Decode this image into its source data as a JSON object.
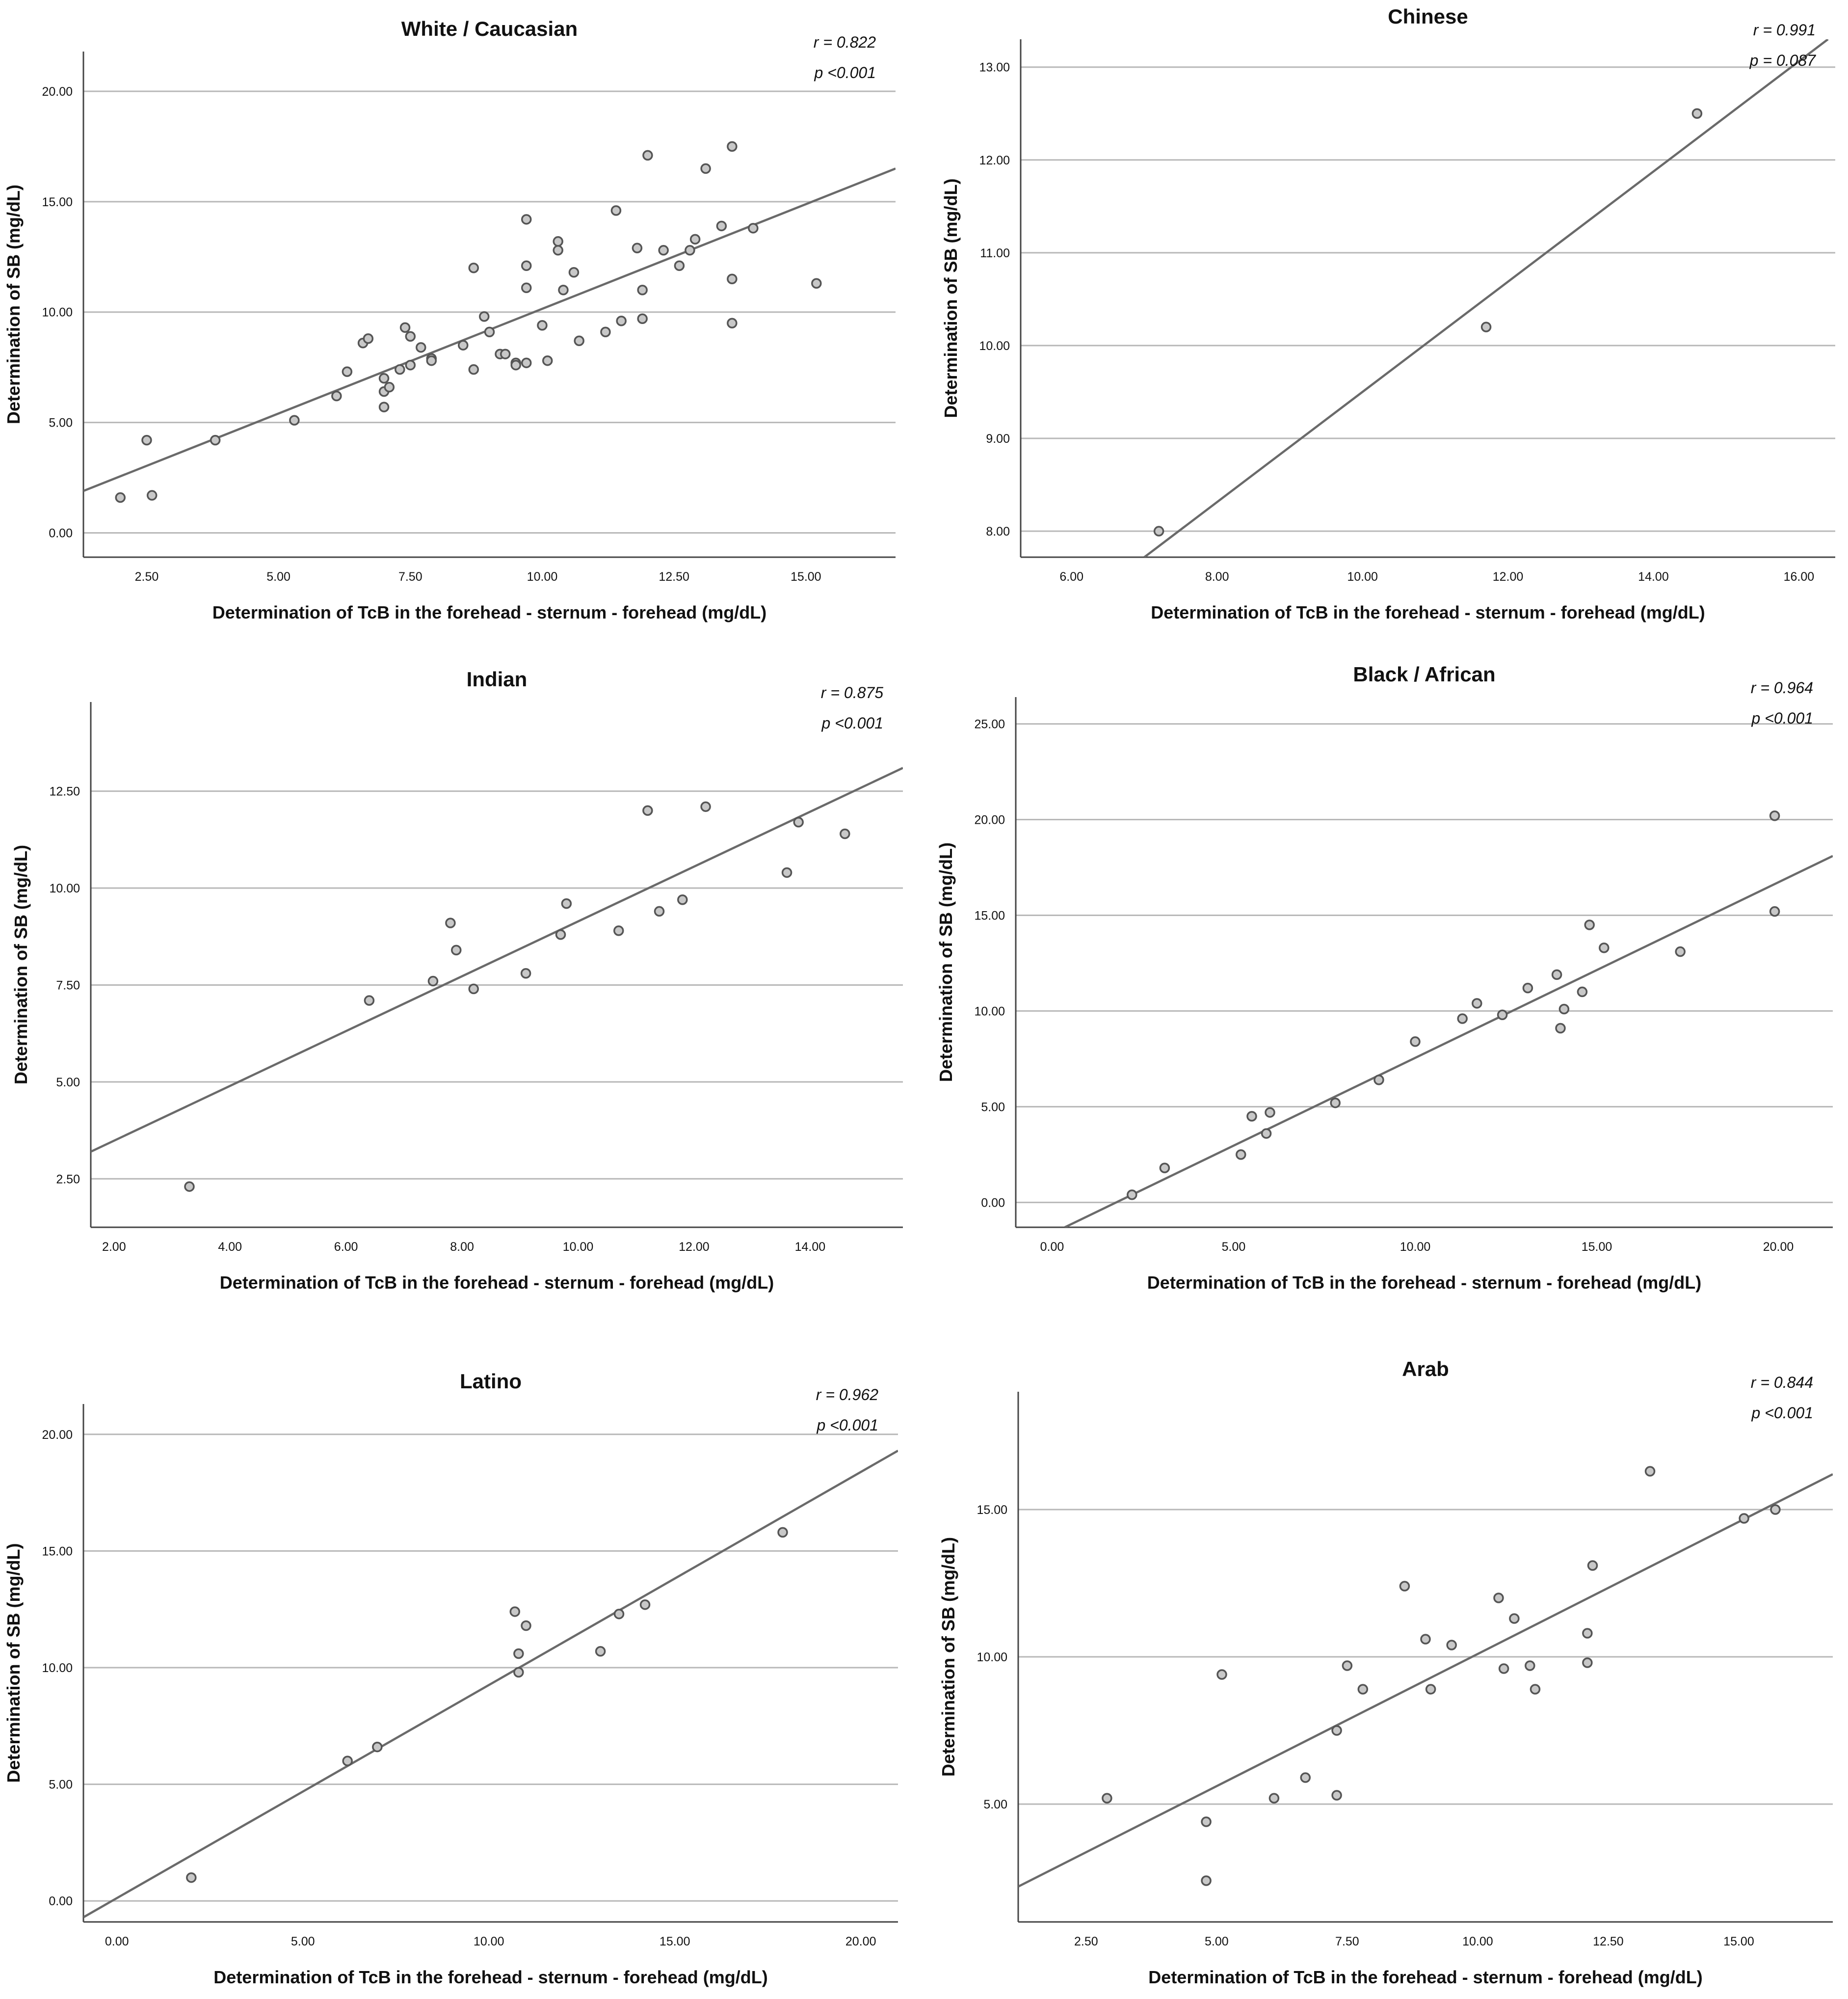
{
  "figure_label": "Correlation between TcB (forehead - sternum - forehead) and SB by ethnicity",
  "colors": {
    "line": "#6a6a6a",
    "grid": "#b8b8b8",
    "axis": "#444444",
    "point_stroke": "#555555",
    "point_fill": "#c8c8c8"
  },
  "chart_data": [
    {
      "type": "scatter",
      "title": "White / Caucasian",
      "xlabel": "Determination of TcB in the forehead - sternum - forehead (mg/dL)",
      "ylabel": "Determination of SB (mg/dL)",
      "xlim": [
        1.3,
        16.7
      ],
      "ylim": [
        -1.1,
        21.8
      ],
      "xticks": [
        2.5,
        5,
        7.5,
        10,
        12.5,
        15
      ],
      "xtick_labels": [
        "2.50",
        "5.00",
        "7.50",
        "10.00",
        "12.50",
        "15.00"
      ],
      "yticks": [
        0,
        5,
        10,
        15,
        20
      ],
      "ytick_labels": [
        "0.00",
        "5.00",
        "10.00",
        "15.00",
        "20.00"
      ],
      "stats": [
        "r = 0.822",
        "p <0.001"
      ],
      "fit": {
        "x1": 1.3,
        "y1": 1.9,
        "x2": 16.7,
        "y2": 16.5
      },
      "points": [
        [
          2,
          1.6
        ],
        [
          2.5,
          4.2
        ],
        [
          2.6,
          1.7
        ],
        [
          3.8,
          4.2
        ],
        [
          5.3,
          5.1
        ],
        [
          6.1,
          6.2
        ],
        [
          6.3,
          7.3
        ],
        [
          6.6,
          8.6
        ],
        [
          6.7,
          8.8
        ],
        [
          7,
          5.7
        ],
        [
          7,
          6.4
        ],
        [
          7,
          7
        ],
        [
          7.1,
          6.6
        ],
        [
          7.3,
          7.4
        ],
        [
          7.4,
          9.3
        ],
        [
          7.5,
          8.9
        ],
        [
          7.5,
          7.6
        ],
        [
          7.7,
          8.4
        ],
        [
          7.9,
          7.9
        ],
        [
          7.9,
          7.8
        ],
        [
          8.5,
          8.5
        ],
        [
          8.7,
          12
        ],
        [
          8.7,
          7.4
        ],
        [
          8.9,
          9.8
        ],
        [
          9,
          9.1
        ],
        [
          9.2,
          8.1
        ],
        [
          9.3,
          8.1
        ],
        [
          9.5,
          7.7
        ],
        [
          9.5,
          7.6
        ],
        [
          9.7,
          14.2
        ],
        [
          9.7,
          12.1
        ],
        [
          9.7,
          11.1
        ],
        [
          9.7,
          7.7
        ],
        [
          10,
          9.4
        ],
        [
          10.1,
          7.8
        ],
        [
          10.3,
          13.2
        ],
        [
          10.3,
          12.8
        ],
        [
          10.4,
          11
        ],
        [
          10.6,
          11.8
        ],
        [
          10.7,
          8.7
        ],
        [
          11.2,
          9.1
        ],
        [
          11.4,
          14.6
        ],
        [
          11.5,
          9.6
        ],
        [
          11.8,
          12.9
        ],
        [
          11.9,
          11
        ],
        [
          11.9,
          9.7
        ],
        [
          12,
          17.1
        ],
        [
          12.3,
          12.8
        ],
        [
          12.6,
          12.1
        ],
        [
          12.8,
          12.8
        ],
        [
          12.9,
          13.3
        ],
        [
          13.1,
          16.5
        ],
        [
          13.4,
          13.9
        ],
        [
          13.6,
          17.5
        ],
        [
          13.6,
          11.5
        ],
        [
          13.6,
          9.5
        ],
        [
          14,
          13.8
        ],
        [
          15.2,
          11.3
        ]
      ]
    },
    {
      "type": "scatter",
      "title": "Chinese",
      "xlabel": "Determination of TcB in the forehead - sternum - forehead (mg/dL)",
      "ylabel": "Determination of SB (mg/dL)",
      "xlim": [
        5.3,
        16.5
      ],
      "ylim": [
        7.72,
        13.3
      ],
      "xticks": [
        6,
        8,
        10,
        12,
        14,
        16
      ],
      "xtick_labels": [
        "6.00",
        "8.00",
        "10.00",
        "12.00",
        "14.00",
        "16.00"
      ],
      "yticks": [
        8,
        9,
        10,
        11,
        12,
        13
      ],
      "ytick_labels": [
        "8.00",
        "9.00",
        "10.00",
        "11.00",
        "12.00",
        "13.00"
      ],
      "stats": [
        "r = 0.991",
        "p = 0.087"
      ],
      "fit": {
        "x1": 7.0,
        "y1": 7.72,
        "x2": 16.4,
        "y2": 13.3
      },
      "points": [
        [
          7.2,
          8.0
        ],
        [
          11.7,
          10.2
        ],
        [
          14.6,
          12.5
        ]
      ]
    },
    {
      "type": "scatter",
      "title": "Indian",
      "xlabel": "Determination of TcB in the forehead - sternum - forehead (mg/dL)",
      "ylabel": "Determination of SB (mg/dL)",
      "xlim": [
        1.6,
        15.6
      ],
      "ylim": [
        1.25,
        14.8
      ],
      "xticks": [
        2,
        4,
        6,
        8,
        10,
        12,
        14
      ],
      "xtick_labels": [
        "2.00",
        "4.00",
        "6.00",
        "8.00",
        "10.00",
        "12.00",
        "14.00"
      ],
      "yticks": [
        2.5,
        5,
        7.5,
        10,
        12.5
      ],
      "ytick_labels": [
        "2.50",
        "5.00",
        "7.50",
        "10.00",
        "12.50"
      ],
      "stats": [
        "r = 0.875",
        "p <0.001"
      ],
      "fit": {
        "x1": 1.6,
        "y1": 3.2,
        "x2": 15.6,
        "y2": 13.1
      },
      "points": [
        [
          3.3,
          2.3
        ],
        [
          6.4,
          7.1
        ],
        [
          7.5,
          7.6
        ],
        [
          7.8,
          9.1
        ],
        [
          7.9,
          8.4
        ],
        [
          8.2,
          7.4
        ],
        [
          9.1,
          7.8
        ],
        [
          9.7,
          8.8
        ],
        [
          9.8,
          9.6
        ],
        [
          10.7,
          8.9
        ],
        [
          11.2,
          12
        ],
        [
          11.4,
          9.4
        ],
        [
          11.8,
          9.7
        ],
        [
          12.2,
          12.1
        ],
        [
          13.6,
          10.4
        ],
        [
          13.8,
          11.7
        ],
        [
          14.6,
          11.4
        ]
      ]
    },
    {
      "type": "scatter",
      "title": "Black / African",
      "xlabel": "Determination of TcB in the forehead - sternum - forehead (mg/dL)",
      "ylabel": "Determination of SB (mg/dL)",
      "xlim": [
        -1.0,
        21.5
      ],
      "ylim": [
        -1.3,
        26.4
      ],
      "xticks": [
        0,
        5,
        10,
        15,
        20
      ],
      "xtick_labels": [
        "0.00",
        "5.00",
        "10.00",
        "15.00",
        "20.00"
      ],
      "yticks": [
        0,
        5,
        10,
        15,
        20,
        25
      ],
      "ytick_labels": [
        "0.00",
        "5.00",
        "10.00",
        "15.00",
        "20.00",
        "25.00"
      ],
      "stats": [
        "r = 0.964",
        "p <0.001"
      ],
      "fit": {
        "x1": 0.35,
        "y1": -1.3,
        "x2": 21.5,
        "y2": 18.1
      },
      "points": [
        [
          2.2,
          0.4
        ],
        [
          3.1,
          1.8
        ],
        [
          5.2,
          2.5
        ],
        [
          5.5,
          4.5
        ],
        [
          5.9,
          3.6
        ],
        [
          6,
          4.7
        ],
        [
          7.8,
          5.2
        ],
        [
          9,
          6.4
        ],
        [
          10,
          8.4
        ],
        [
          11.3,
          9.6
        ],
        [
          11.7,
          10.4
        ],
        [
          12.4,
          9.8
        ],
        [
          13.1,
          11.2
        ],
        [
          13.9,
          11.9
        ],
        [
          14,
          9.1
        ],
        [
          14.1,
          10.1
        ],
        [
          14.6,
          11
        ],
        [
          14.8,
          14.5
        ],
        [
          15.2,
          13.3
        ],
        [
          17.3,
          13.1
        ],
        [
          19.9,
          20.2
        ],
        [
          19.9,
          15.2
        ]
      ]
    },
    {
      "type": "scatter",
      "title": "Latino",
      "xlabel": "Determination of TcB in the forehead - sternum - forehead (mg/dL)",
      "ylabel": "Determination of SB (mg/dL)",
      "xlim": [
        -0.9,
        21.0
      ],
      "ylim": [
        -0.9,
        21.3
      ],
      "xticks": [
        0,
        5,
        10,
        15,
        20
      ],
      "xtick_labels": [
        "0.00",
        "5.00",
        "10.00",
        "15.00",
        "20.00"
      ],
      "yticks": [
        0,
        5,
        10,
        15,
        20
      ],
      "ytick_labels": [
        "0.00",
        "5.00",
        "10.00",
        "15.00",
        "20.00"
      ],
      "stats": [
        "r = 0.962",
        "p <0.001"
      ],
      "fit": {
        "x1": -0.9,
        "y1": -0.7,
        "x2": 21.0,
        "y2": 19.3
      },
      "points": [
        [
          2,
          1
        ],
        [
          6.2,
          6
        ],
        [
          7,
          6.6
        ],
        [
          10.7,
          12.4
        ],
        [
          10.8,
          10.6
        ],
        [
          10.8,
          9.8
        ],
        [
          11,
          11.8
        ],
        [
          13,
          10.7
        ],
        [
          13.5,
          12.3
        ],
        [
          14.2,
          12.7
        ],
        [
          17.9,
          15.8
        ]
      ]
    },
    {
      "type": "scatter",
      "title": "Arab",
      "xlabel": "Determination of TcB in the forehead - sternum - forehead (mg/dL)",
      "ylabel": "Determination of SB (mg/dL)",
      "xlim": [
        1.2,
        16.8
      ],
      "ylim": [
        1.0,
        19.0
      ],
      "xticks": [
        2.5,
        5,
        7.5,
        10,
        12.5,
        15
      ],
      "xtick_labels": [
        "2.50",
        "5.00",
        "7.50",
        "10.00",
        "12.50",
        "15.00"
      ],
      "yticks": [
        5,
        10,
        15
      ],
      "ytick_labels": [
        "5.00",
        "10.00",
        "15.00"
      ],
      "stats": [
        "r = 0.844",
        "p <0.001"
      ],
      "fit": {
        "x1": 1.2,
        "y1": 2.2,
        "x2": 16.8,
        "y2": 16.2
      },
      "points": [
        [
          2.9,
          5.2
        ],
        [
          4.8,
          4.4
        ],
        [
          4.8,
          2.4
        ],
        [
          5.1,
          9.4
        ],
        [
          6.1,
          5.2
        ],
        [
          6.7,
          5.9
        ],
        [
          7.3,
          7.5
        ],
        [
          7.3,
          5.3
        ],
        [
          7.5,
          9.7
        ],
        [
          7.8,
          8.9
        ],
        [
          8.6,
          12.4
        ],
        [
          9,
          10.6
        ],
        [
          9.1,
          8.9
        ],
        [
          9.5,
          10.4
        ],
        [
          10.4,
          12
        ],
        [
          10.5,
          9.6
        ],
        [
          10.7,
          11.3
        ],
        [
          11,
          9.7
        ],
        [
          11.1,
          8.9
        ],
        [
          12.1,
          10.8
        ],
        [
          12.1,
          9.8
        ],
        [
          12.2,
          13.1
        ],
        [
          13.3,
          16.3
        ],
        [
          15.1,
          14.7
        ],
        [
          15.7,
          15
        ]
      ]
    }
  ]
}
